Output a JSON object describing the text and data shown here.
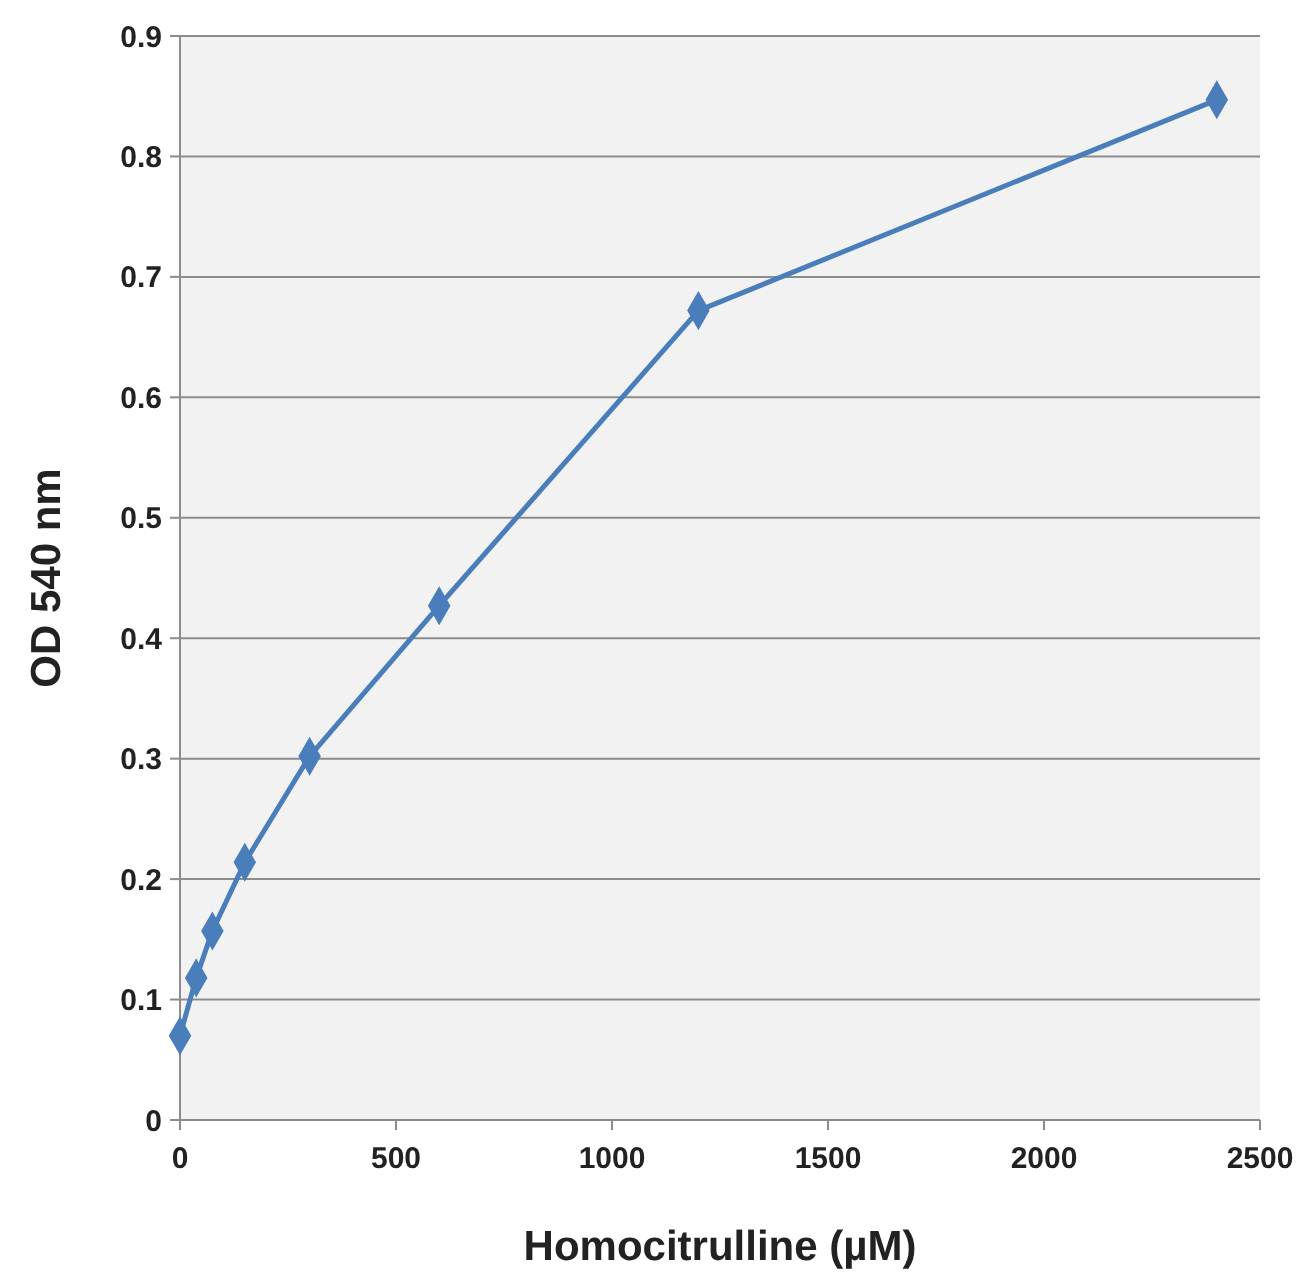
{
  "chart_data": {
    "type": "line",
    "xlabel": "Homocitrulline (µM)",
    "ylabel": "OD 540 nm",
    "x": [
      0,
      37.5,
      75,
      150,
      300,
      600,
      1200,
      2400
    ],
    "series": [
      {
        "color": "#4a7ebb",
        "values": [
          0.07,
          0.118,
          0.157,
          0.214,
          0.302,
          0.427,
          0.672,
          0.847
        ]
      }
    ],
    "xlim": [
      0,
      2500
    ],
    "xticks": [
      0,
      500,
      1000,
      1500,
      2000,
      2500
    ],
    "ylim": [
      0,
      0.9
    ],
    "yticks": [
      0,
      0.1,
      0.2,
      0.3,
      0.4,
      0.5,
      0.6,
      0.7,
      0.8,
      0.9
    ],
    "grid": "y",
    "marker": "diamond",
    "line_style": "solid"
  }
}
